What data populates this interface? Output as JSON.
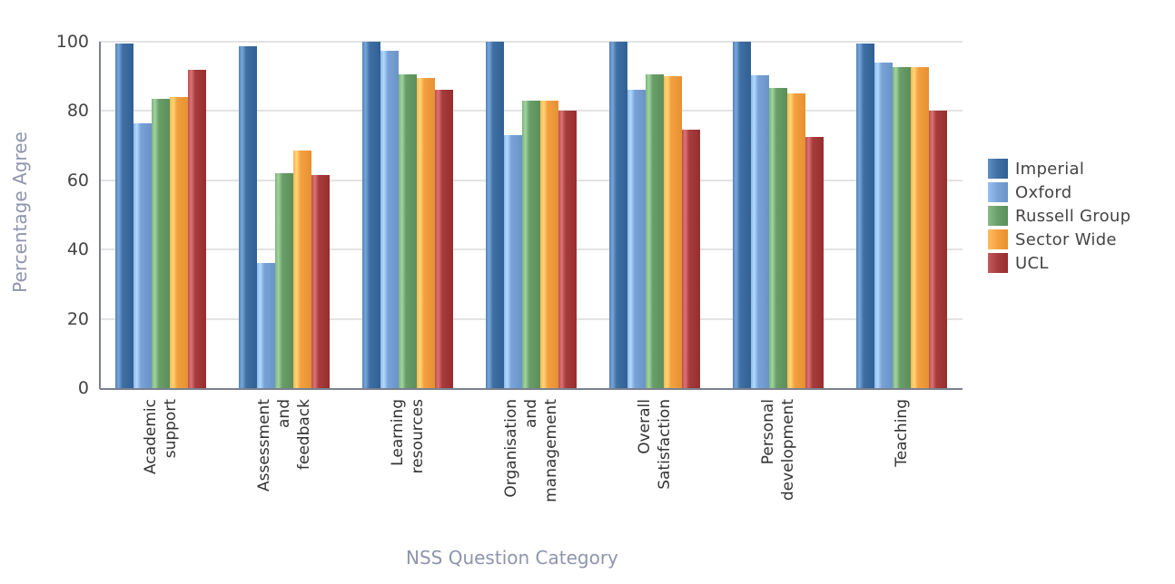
{
  "chart_data": {
    "type": "bar",
    "title": "",
    "xlabel": "NSS Question Category",
    "ylabel": "Percentage Agree",
    "ylim": [
      0,
      100
    ],
    "yticks": [
      0,
      20,
      40,
      60,
      80,
      100
    ],
    "grid": true,
    "legend_position": "right",
    "categories": [
      "Academic support",
      "Assessment and feedback",
      "Learning resources",
      "Organisation and management",
      "Overall Satisfaction",
      "Personal development",
      "Teaching"
    ],
    "category_label_lines": [
      [
        "Academic",
        "support"
      ],
      [
        "Assessment",
        "and",
        "feedback"
      ],
      [
        "Learning",
        "resources"
      ],
      [
        "Organisation",
        "and",
        "management"
      ],
      [
        "Overall",
        "Satisfaction"
      ],
      [
        "Personal",
        "development"
      ],
      [
        "Teaching"
      ]
    ],
    "series": [
      {
        "name": "Imperial",
        "color": "#3f6fa3",
        "values": [
          99.5,
          98.7,
          100,
          100,
          100,
          100,
          99.5
        ]
      },
      {
        "name": "Oxford",
        "color": "#79a3d6",
        "values": [
          76.4,
          36,
          97.5,
          73,
          86,
          90.3,
          94
        ]
      },
      {
        "name": "Russell Group",
        "color": "#6a9e68",
        "values": [
          83.5,
          62,
          90.5,
          83,
          90.5,
          86.7,
          92.7
        ]
      },
      {
        "name": "Sector Wide",
        "color": "#f5a040",
        "values": [
          84,
          68.5,
          89.5,
          83,
          90,
          85,
          92.7
        ]
      },
      {
        "name": "UCL",
        "color": "#a63c3c",
        "values": [
          92,
          61.4,
          86,
          80,
          74.5,
          72.5,
          80
        ]
      }
    ]
  }
}
